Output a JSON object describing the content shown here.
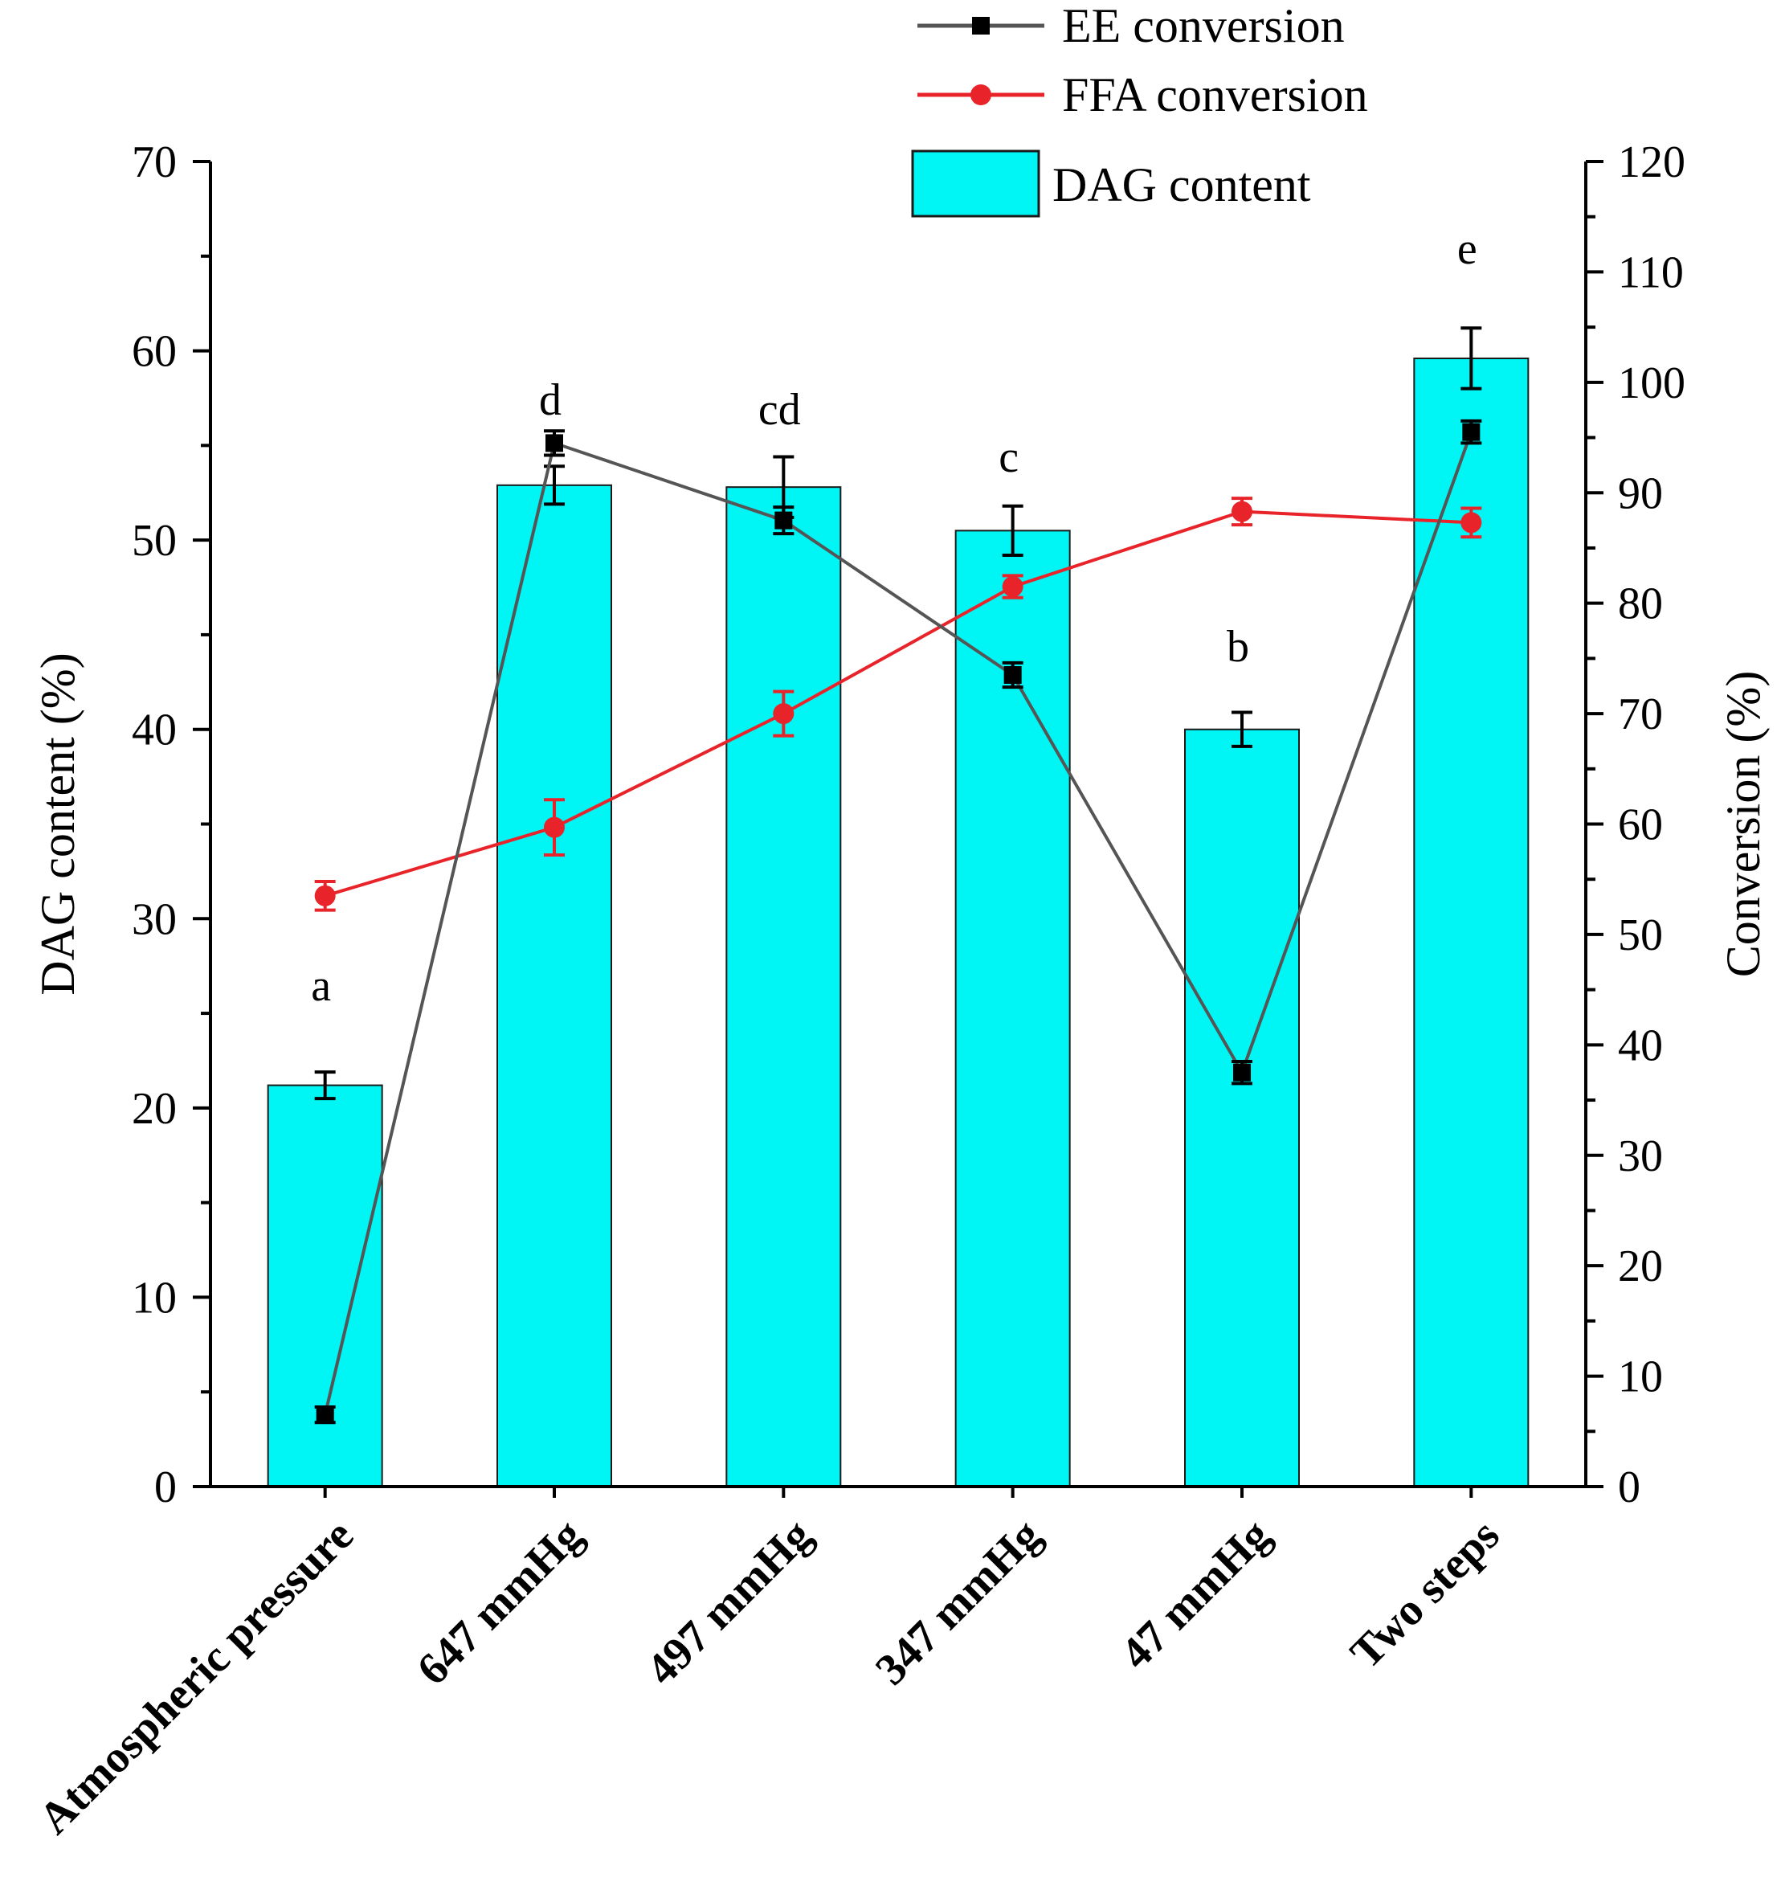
{
  "colors": {
    "bar_fill": "#00F5F5",
    "bar_stroke": "#1a1a1a",
    "ee_line": "#555555",
    "ee_marker": "#000000",
    "ffa_line": "#E8242A",
    "ffa_marker": "#E8242A",
    "axis": "#000000"
  },
  "chart_data": {
    "type": "bar",
    "title": "",
    "xlabel": "",
    "ylabel": "DAG content (%)",
    "y2label": "Conversion (%)",
    "ylim": [
      0,
      70
    ],
    "y2lim": [
      0,
      120
    ],
    "yticks": [
      0,
      10,
      20,
      30,
      40,
      50,
      60,
      70
    ],
    "y2ticks": [
      0,
      10,
      20,
      30,
      40,
      50,
      60,
      70,
      80,
      90,
      100,
      110,
      120
    ],
    "categories": [
      "Atmospheric pressure",
      "647 mmHg",
      "497 mmHg",
      "347 mmHg",
      "47  mmHg",
      "Two steps"
    ],
    "series": [
      {
        "name": "DAG content",
        "type": "bar",
        "axis": "left",
        "values": [
          21.2,
          52.9,
          52.8,
          50.5,
          40.0,
          59.6
        ],
        "errors": [
          0.7,
          1.0,
          1.6,
          1.3,
          0.9,
          1.6
        ]
      },
      {
        "name": "EE conversion",
        "type": "line",
        "axis": "right",
        "values": [
          6.5,
          94.5,
          87.5,
          73.5,
          37.5,
          95.5
        ],
        "errors": [
          0.7,
          1.1,
          1.2,
          1.1,
          1.0,
          1.0
        ]
      },
      {
        "name": "FFA conversion",
        "type": "line",
        "axis": "right",
        "values": [
          53.5,
          59.7,
          70.0,
          81.5,
          88.3,
          87.3
        ],
        "errors": [
          1.3,
          2.5,
          2.0,
          1.0,
          1.2,
          1.3
        ]
      }
    ],
    "significance_letters": [
      "a",
      "d",
      "cd",
      "c",
      "b",
      "e"
    ],
    "legend": [
      "EE conversion",
      "FFA conversion",
      "DAG content"
    ],
    "legend_position": "top-right",
    "grid": false
  }
}
